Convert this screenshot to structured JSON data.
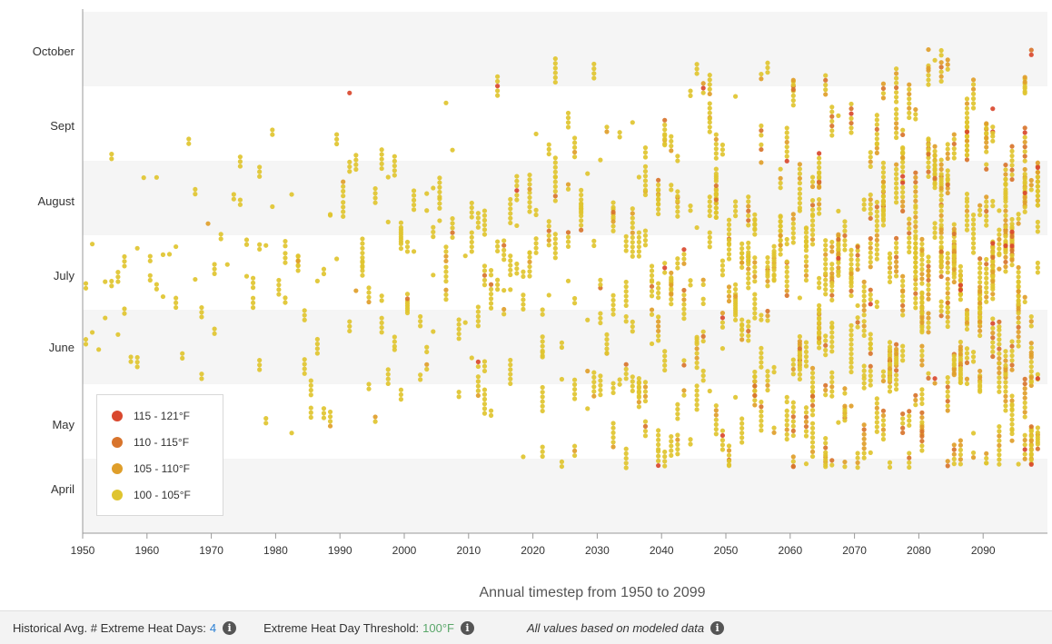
{
  "chart_data": {
    "type": "scatter",
    "x_axis": {
      "label": "Annual timestep from 1950 to 2099",
      "range": [
        1950,
        2099
      ],
      "ticks": [
        "1950",
        "1960",
        "1970",
        "1980",
        "1990",
        "2000",
        "2010",
        "2020",
        "2030",
        "2040",
        "2050",
        "2060",
        "2070",
        "2080",
        "2090"
      ]
    },
    "y_axis": {
      "label": "",
      "ticks": [
        "April",
        "May",
        "June",
        "July",
        "August",
        "Sept",
        "October"
      ],
      "band_months": true
    },
    "legend_placement": "bottom-left",
    "series": [
      {
        "name": "115 - 121°F",
        "color": "#d9482e"
      },
      {
        "name": "110 - 115°F",
        "color": "#d8742c"
      },
      {
        "name": "105 - 110°F",
        "color": "#df9e2a"
      },
      {
        "name": "100 - 105°F",
        "color": "#dfc42f"
      }
    ],
    "points_note_generated": true
  },
  "footer": {
    "historical_label": "Historical Avg. # Extreme Heat Days:",
    "historical_value": "4",
    "threshold_label": "Extreme Heat Day Threshold:",
    "threshold_value": "100°F",
    "note": "All values based on modeled data"
  },
  "icons": {
    "info": "info-icon",
    "info_glyph": "i"
  }
}
